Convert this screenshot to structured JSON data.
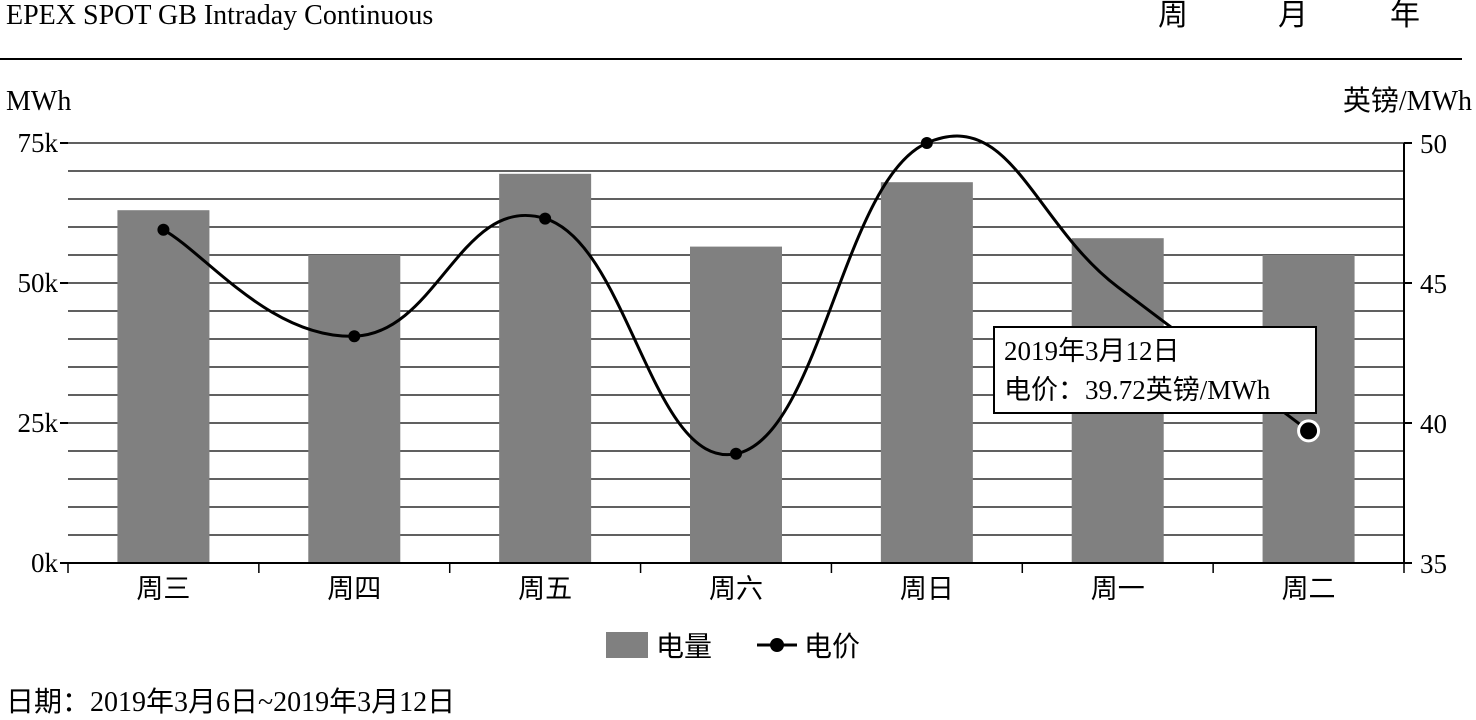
{
  "header": {
    "title": "EPEX SPOT GB Intraday Continuous",
    "range_tabs": [
      "周",
      "月",
      "年"
    ]
  },
  "footer": {
    "date_label": "日期：2019年3月6日~2019年3月12日"
  },
  "chart_data": {
    "type": "bar",
    "categories": [
      "周三",
      "周四",
      "周五",
      "周六",
      "周日",
      "周一",
      "周二"
    ],
    "series": [
      {
        "name": "电量",
        "type": "bar",
        "axis": "left",
        "values": [
          63000,
          55000,
          69500,
          56500,
          68000,
          58000,
          55000
        ],
        "color": "#808080"
      },
      {
        "name": "电价",
        "type": "line",
        "axis": "right",
        "values": [
          46.9,
          43.1,
          47.3,
          38.9,
          50.0,
          null,
          39.72
        ],
        "color": "#000000"
      }
    ],
    "y_left": {
      "label": "MWh",
      "ylim": [
        0,
        75000
      ],
      "ticks": [
        "0k",
        "25k",
        "50k",
        "75k"
      ],
      "tick_values": [
        0,
        25000,
        50000,
        75000
      ]
    },
    "y_right": {
      "label": "英镑/MWh",
      "ylim": [
        35,
        50
      ],
      "ticks": [
        "35",
        "40",
        "45",
        "50"
      ],
      "tick_values": [
        35,
        40,
        45,
        50
      ]
    },
    "grid": true,
    "legend_position": "bottom-center",
    "tooltip": {
      "index": 6,
      "lines": [
        "2019年3月12日",
        "电价：39.72英镑/MWh"
      ]
    }
  }
}
